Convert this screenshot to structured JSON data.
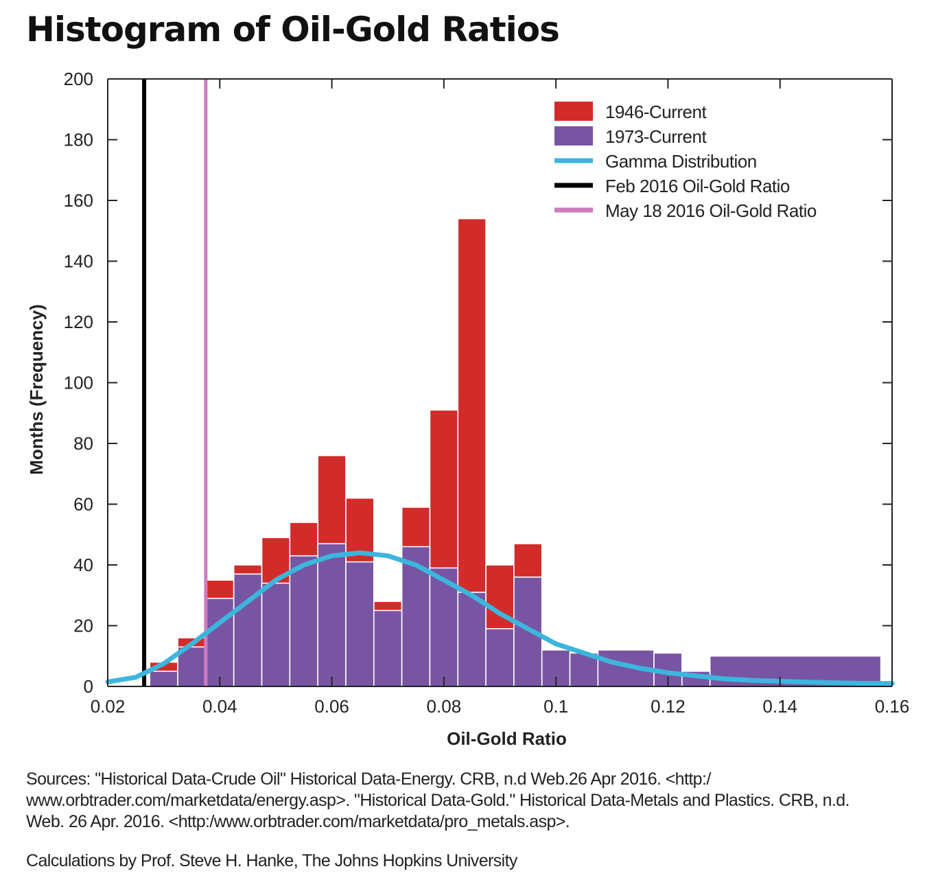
{
  "chart_data": {
    "type": "bar",
    "title": "Histogram of Oil-Gold Ratios",
    "xlabel": "Oil-Gold Ratio",
    "ylabel": "Months (Frequency)",
    "xlim": [
      0.02,
      0.16
    ],
    "ylim": [
      0,
      200
    ],
    "x_ticks": [
      "0.02",
      "0.04",
      "0.06",
      "0.08",
      "0.1",
      "0.12",
      "0.14",
      "0.16"
    ],
    "y_ticks": [
      "0",
      "20",
      "40",
      "60",
      "80",
      "100",
      "120",
      "140",
      "160",
      "180",
      "200"
    ],
    "grid": false,
    "legend_position": "top-right",
    "bin_edges": [
      0.0275,
      0.0325,
      0.0375,
      0.0425,
      0.0475,
      0.0525,
      0.0575,
      0.0625,
      0.0675,
      0.0725,
      0.0775,
      0.0825,
      0.0875,
      0.0925,
      0.0975,
      0.1025,
      0.1075,
      0.1175,
      0.1225,
      0.1275,
      0.158
    ],
    "series": [
      {
        "name": "1946-Current",
        "color": "#d12c2a",
        "values": [
          8,
          16,
          35,
          40,
          49,
          54,
          76,
          62,
          28,
          59,
          91,
          154,
          40,
          47,
          12,
          11,
          12,
          11,
          5,
          10
        ]
      },
      {
        "name": "1973-Current",
        "color": "#7855a3",
        "values": [
          5,
          13,
          29,
          37,
          34,
          43,
          47,
          41,
          25,
          46,
          39,
          31,
          19,
          36,
          12,
          11,
          12,
          11,
          5,
          10
        ]
      }
    ],
    "curves": [
      {
        "name": "Gamma Distribution",
        "color": "#3cb6dc",
        "x": [
          0.02,
          0.025,
          0.03,
          0.035,
          0.04,
          0.045,
          0.05,
          0.055,
          0.06,
          0.065,
          0.07,
          0.075,
          0.08,
          0.085,
          0.09,
          0.095,
          0.1,
          0.105,
          0.11,
          0.115,
          0.12,
          0.125,
          0.13,
          0.135,
          0.14,
          0.145,
          0.15,
          0.155,
          0.16
        ],
        "y": [
          1.5,
          3,
          7.5,
          14,
          21,
          28,
          35,
          40,
          43,
          44,
          43,
          40,
          35,
          30,
          24,
          19,
          14,
          11,
          8,
          6,
          4.5,
          3.5,
          2.5,
          2,
          1.7,
          1.4,
          1.2,
          1,
          1
        ]
      }
    ],
    "vlines": [
      {
        "name": "Feb 2016 Oil-Gold Ratio",
        "x": 0.0265,
        "color": "#000000"
      },
      {
        "name": "May 18 2016 Oil-Gold Ratio",
        "x": 0.0375,
        "color": "#d17bbf"
      }
    ]
  },
  "footer": {
    "sources": "Sources: \"Historical Data-Crude Oil\" Historical Data-Energy. CRB, n.d Web.26 Apr 2016. <http:/ www.orbtrader.com/marketdata/energy.asp>. \"Historical Data-Gold.\" Historical Data-Metals and Plastics. CRB, n.d. Web. 26 Apr. 2016. <http:/www.orbtrader.com/marketdata/pro_metals.asp>.",
    "credit": "Calculations by Prof. Steve H. Hanke, The Johns Hopkins University"
  }
}
